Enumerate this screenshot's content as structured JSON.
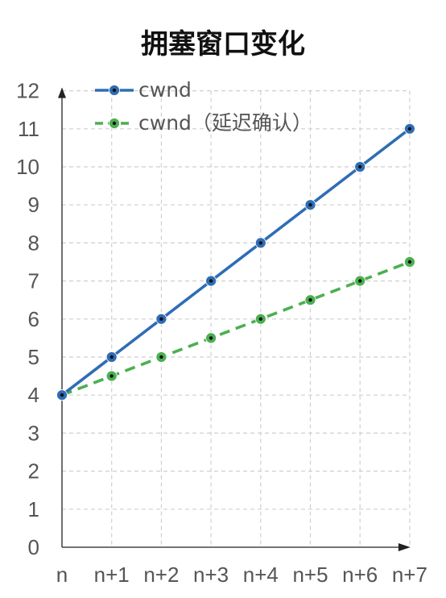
{
  "chart_data": {
    "type": "line",
    "title": "拥塞窗口变化",
    "xlabel": "",
    "ylabel": "",
    "categories": [
      "n",
      "n+1",
      "n+2",
      "n+3",
      "n+4",
      "n+5",
      "n+6",
      "n+7"
    ],
    "ylim": [
      0,
      12
    ],
    "yticks": [
      0,
      1,
      2,
      3,
      4,
      5,
      6,
      7,
      8,
      9,
      10,
      11,
      12
    ],
    "grid": true,
    "legend_position": "top-left",
    "series": [
      {
        "name": "cwnd",
        "values": [
          4,
          5,
          6,
          7,
          8,
          9,
          10,
          11
        ],
        "color": "#2f6db5",
        "style": "solid"
      },
      {
        "name": "cwnd（延迟确认）",
        "values": [
          4,
          4.5,
          5,
          5.5,
          6,
          6.5,
          7,
          7.5
        ],
        "color": "#4caf50",
        "style": "dashed"
      }
    ]
  }
}
